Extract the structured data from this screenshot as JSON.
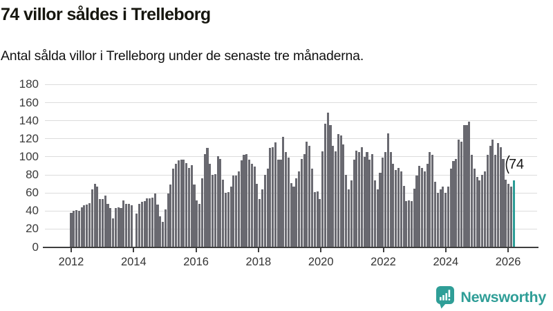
{
  "header": {
    "title": "74 villor såldes i Trelleborg",
    "subtitle": "Antal sålda villor i Trelleborg under de senaste tre månaderna."
  },
  "chart_data": {
    "type": "bar",
    "title": "74 villor såldes i Trelleborg",
    "subtitle": "Antal sålda villor i Trelleborg under de senaste tre månaderna.",
    "x_unit": "month",
    "x_start": "2012-01",
    "x_end": "2026-02",
    "x_tick_labels": [
      "2012",
      "2014",
      "2016",
      "2018",
      "2020",
      "2022",
      "2024",
      "2026"
    ],
    "y_ticks": [
      0,
      20,
      40,
      60,
      80,
      100,
      120,
      140,
      160,
      180
    ],
    "ylim": [
      0,
      180
    ],
    "grid": true,
    "values": [
      38,
      40,
      41,
      40,
      44,
      46,
      47,
      49,
      64,
      70,
      67,
      53,
      53,
      57,
      48,
      43,
      32,
      43,
      44,
      43,
      52,
      48,
      48,
      46,
      0,
      37,
      48,
      50,
      51,
      54,
      54,
      55,
      59,
      47,
      34,
      28,
      42,
      59,
      69,
      87,
      92,
      96,
      97,
      97,
      93,
      88,
      91,
      69,
      52,
      48,
      76,
      103,
      110,
      92,
      80,
      81,
      101,
      98,
      75,
      60,
      61,
      67,
      79,
      79,
      84,
      96,
      102,
      103,
      97,
      92,
      89,
      70,
      53,
      64,
      80,
      87,
      110,
      111,
      116,
      97,
      97,
      122,
      105,
      99,
      71,
      67,
      76,
      84,
      98,
      103,
      117,
      112,
      87,
      61,
      62,
      53,
      106,
      137,
      149,
      135,
      112,
      106,
      125,
      124,
      114,
      80,
      64,
      74,
      97,
      107,
      105,
      111,
      100,
      105,
      97,
      103,
      74,
      64,
      82,
      99,
      105,
      126,
      105,
      92,
      85,
      88,
      84,
      68,
      51,
      52,
      51,
      65,
      79,
      90,
      88,
      84,
      92,
      105,
      102,
      72,
      60,
      64,
      67,
      60,
      67,
      87,
      95,
      98,
      119,
      117,
      135,
      135,
      139,
      102,
      87,
      78,
      74,
      80,
      84,
      102,
      112,
      119,
      102,
      115,
      111,
      98,
      75,
      70,
      67,
      74
    ],
    "highlight": {
      "index": 169,
      "value": 74,
      "label": "74",
      "color": "#2b9c95"
    },
    "colors": {
      "bar": "#696970",
      "highlight": "#2b9c95",
      "gridline": "#dcdcdc",
      "axis": "#3e3e3e"
    },
    "legend": "none"
  },
  "footer": {
    "brand": "Newsworthy",
    "logo_icon": "bar-chart-speech-bubble-icon",
    "brand_color": "#2f9e97"
  }
}
